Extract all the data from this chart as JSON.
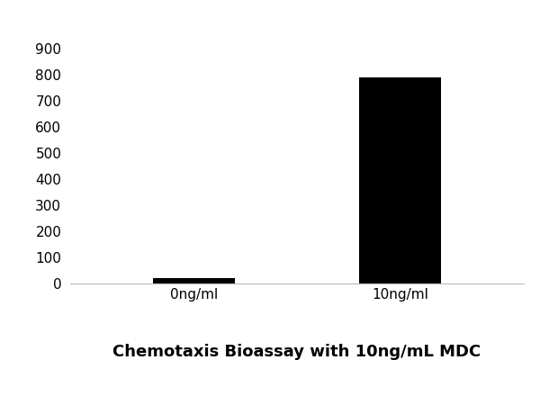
{
  "categories": [
    "0ng/ml",
    "10ng/ml"
  ],
  "values": [
    20,
    790
  ],
  "bar_color": "#000000",
  "title": "Chemotaxis Bioassay with 10ng/mL MDC",
  "title_fontsize": 13,
  "title_fontweight": "bold",
  "ylim": [
    0,
    900
  ],
  "yticks": [
    0,
    100,
    200,
    300,
    400,
    500,
    600,
    700,
    800,
    900
  ],
  "background_color": "#ffffff",
  "bar_width": 0.4,
  "tick_fontsize": 11,
  "xlabel_fontsize": 11
}
